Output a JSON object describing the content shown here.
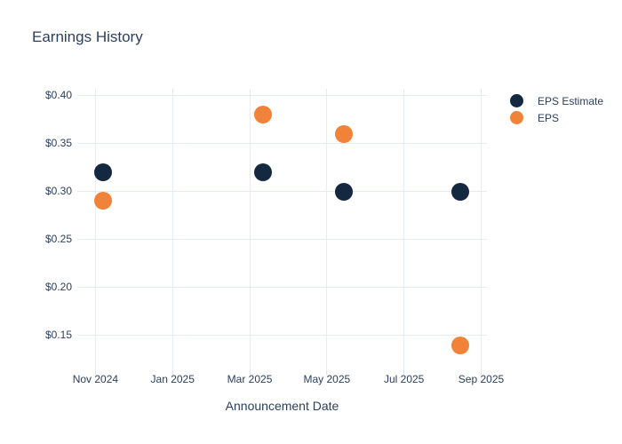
{
  "chart_data": {
    "type": "scatter",
    "title": "Earnings History",
    "xlabel": "Announcement Date",
    "ylabel": "",
    "grid": true,
    "legend_position": "right-top",
    "colors": {
      "background": "#ffffff",
      "text": "#2a3f5f",
      "gridline": "#e5ecf6",
      "tick_mark": "#dde4ee",
      "eps_estimate": "#142840",
      "eps": "#f08239"
    },
    "x_axis": {
      "tick_labels": [
        "Nov 2024",
        "Jan 2025",
        "Mar 2025",
        "May 2025",
        "Jul 2025",
        "Sep 2025"
      ],
      "tick_positions_months": [
        0,
        2,
        4,
        6,
        8,
        10
      ],
      "range_months": [
        -0.47,
        10.15
      ]
    },
    "y_axis": {
      "tick_labels": [
        "$0.40",
        "$0.35",
        "$0.30",
        "$0.25",
        "$0.20",
        "$0.15"
      ],
      "tick_values": [
        0.4,
        0.35,
        0.3,
        0.25,
        0.2,
        0.15
      ],
      "range": [
        0.1137,
        0.4068
      ]
    },
    "series": [
      {
        "name": "EPS Estimate",
        "slug": "eps-estimate",
        "color": "#142840",
        "marker": "circle",
        "x_months": [
          0.19,
          4.35,
          6.43,
          9.45
        ],
        "y": [
          0.32,
          0.32,
          0.3,
          0.3
        ]
      },
      {
        "name": "EPS",
        "slug": "eps",
        "color": "#f08239",
        "marker": "circle",
        "x_months": [
          0.19,
          4.35,
          6.43,
          9.45
        ],
        "y": [
          0.29,
          0.38,
          0.36,
          0.14
        ]
      }
    ]
  }
}
